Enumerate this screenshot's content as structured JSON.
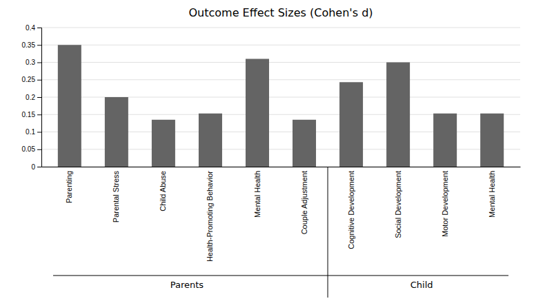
{
  "chart_data": {
    "type": "bar",
    "title": "Outcome Effect Sizes (Cohen's d)",
    "categories": [
      "Parenting",
      "Parental Stress",
      "Child Abuse",
      "Health-Promoting Behavior",
      "Mental Health",
      "Couple Adjustment",
      "Cognitive Development",
      "Social Development",
      "Motor Development",
      "Mental Health"
    ],
    "values": [
      0.35,
      0.2,
      0.135,
      0.153,
      0.31,
      0.135,
      0.243,
      0.3,
      0.153,
      0.153
    ],
    "color": "#646464",
    "ylim": [
      0,
      0.4
    ],
    "yticks": [
      0,
      0.05,
      0.1,
      0.15,
      0.2,
      0.25,
      0.3,
      0.35,
      0.4
    ],
    "grid": true,
    "groups": [
      {
        "label": "Parents",
        "indices": [
          0,
          1,
          2,
          3,
          4,
          5
        ]
      },
      {
        "label": "Child",
        "indices": [
          6,
          7,
          8,
          9
        ]
      }
    ]
  }
}
